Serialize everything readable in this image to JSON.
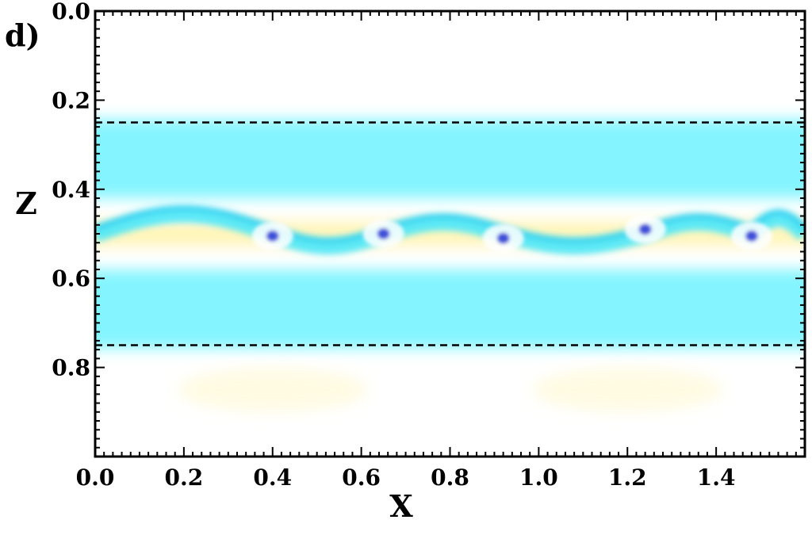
{
  "panel_label": "d)",
  "chart_data": {
    "type": "heatmap",
    "xlabel": "X",
    "ylabel": "Z",
    "xlim": [
      0.0,
      1.6
    ],
    "ylim": [
      0.0,
      1.0
    ],
    "y_inverted": true,
    "x_ticks": [
      0.0,
      0.2,
      0.4,
      0.6,
      0.8,
      1.0,
      1.2,
      1.4
    ],
    "x_tick_labels": [
      "0.0",
      "0.2",
      "0.4",
      "0.6",
      "0.8",
      "1.0",
      "1.2",
      "1.4"
    ],
    "y_ticks": [
      0.0,
      0.2,
      0.4,
      0.6,
      0.8
    ],
    "y_tick_labels": [
      "0.0",
      "0.2",
      "0.4",
      "0.6",
      "0.8"
    ],
    "reference_lines": [
      {
        "orientation": "horizontal",
        "z": 0.25,
        "style": "dashed",
        "color": "#000000"
      },
      {
        "orientation": "horizontal",
        "z": 0.75,
        "style": "dashed",
        "color": "#000000"
      }
    ],
    "bands": [
      {
        "z_from": 0.25,
        "z_to": 0.75,
        "color": "#6ff3ff"
      }
    ],
    "vortex_layer": {
      "z_center": 0.5,
      "amplitude": 0.045
    },
    "vortex_centers": [
      {
        "x": 0.4,
        "z": 0.505
      },
      {
        "x": 0.65,
        "z": 0.5
      },
      {
        "x": 0.92,
        "z": 0.51
      },
      {
        "x": 1.24,
        "z": 0.49
      },
      {
        "x": 1.48,
        "z": 0.505
      }
    ],
    "colors": {
      "positive": "#fff4b0",
      "negative": "#4ee8f8",
      "core": "#2a3fd6"
    },
    "grid": false
  }
}
